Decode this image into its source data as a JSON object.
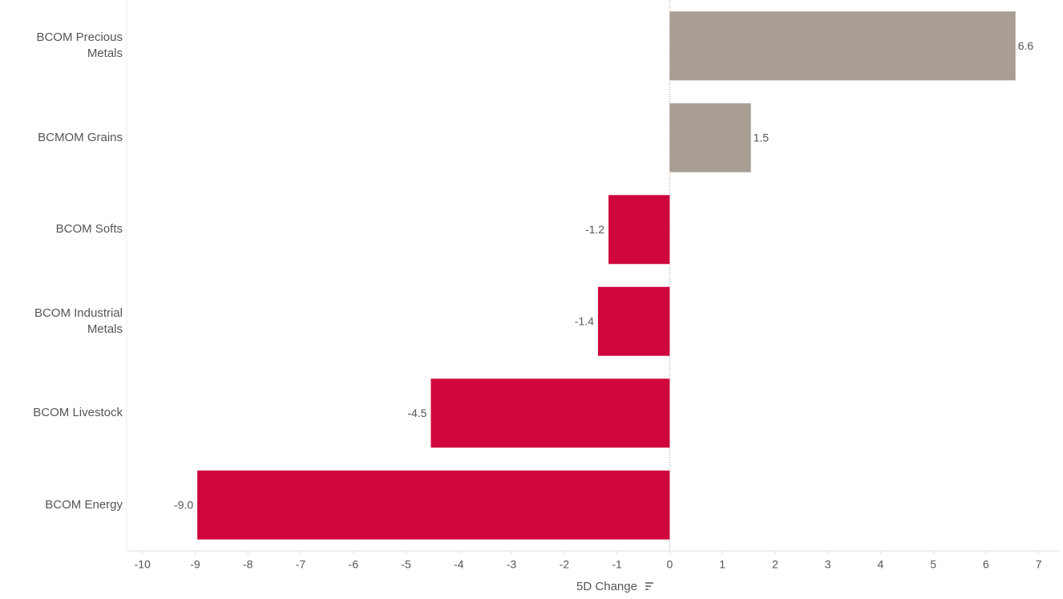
{
  "chart_data": {
    "type": "hbar",
    "categories": [
      "BCOM Precious Metals",
      "BCMOM Grains",
      "BCOM Softs",
      "BCOM Industrial Metals",
      "BCOM Livestock",
      "BCOM Energy"
    ],
    "values": [
      6.56,
      1.54,
      -1.16,
      -1.36,
      -4.53,
      -8.96
    ],
    "value_labels": [
      "6.6",
      "1.5",
      "-1.2",
      "-1.4",
      "-4.5",
      "-9.0"
    ],
    "positive_color": "#a89e94",
    "negative_color": "#cf063b",
    "x_label": "5D Change",
    "xlim": [
      -10.3,
      7.4
    ],
    "xticks": [
      -10,
      -9,
      -8,
      -7,
      -6,
      -5,
      -4,
      -3,
      -2,
      -1,
      0,
      1,
      2,
      3,
      4,
      5,
      6,
      7
    ]
  }
}
